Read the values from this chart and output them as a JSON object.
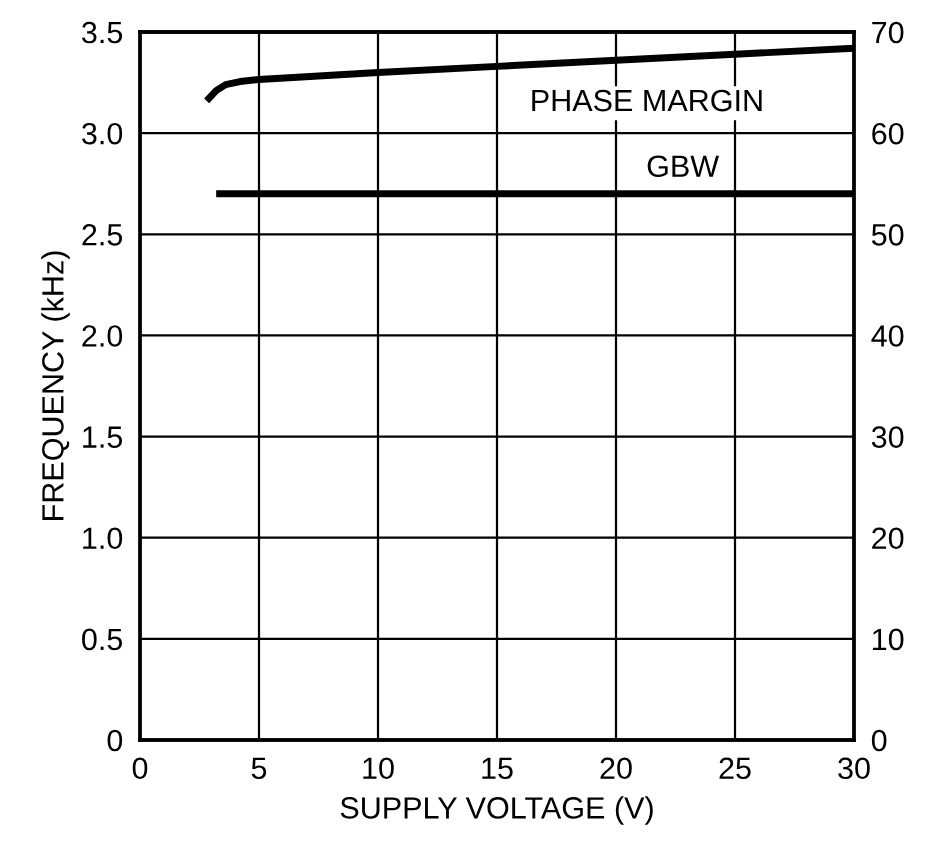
{
  "chart_data": {
    "type": "line",
    "xlabel": "SUPPLY VOLTAGE (V)",
    "ylabel": "FREQUENCY (kHz)",
    "xlim": [
      0,
      30
    ],
    "xticks": [
      0,
      5,
      10,
      15,
      20,
      25,
      30
    ],
    "ylim": [
      0,
      3.5
    ],
    "yticks": [
      0,
      0.5,
      {
        "value": 1,
        "label": "1.0"
      },
      1.5,
      {
        "value": 2,
        "label": "2.0"
      },
      2.5,
      {
        "value": 3,
        "label": "3.0"
      },
      3.5
    ],
    "y2lim": [
      0,
      70
    ],
    "y2ticks": [
      0,
      10,
      20,
      30,
      40,
      50,
      60,
      70
    ],
    "grid": true,
    "series": [
      {
        "name": "PHASE MARGIN",
        "color": "#000000",
        "axis": "y2",
        "x": [
          2.8,
          3.2,
          3.6,
          4.2,
          5,
          10,
          15,
          20,
          25,
          30
        ],
        "values": [
          63.2,
          64.2,
          64.8,
          65.1,
          65.3,
          66.0,
          66.6,
          67.2,
          67.8,
          68.4
        ]
      },
      {
        "name": "GBW",
        "color": "#000000",
        "axis": "y",
        "x": [
          3.2,
          30
        ],
        "values": [
          2.7,
          2.7
        ]
      }
    ]
  }
}
